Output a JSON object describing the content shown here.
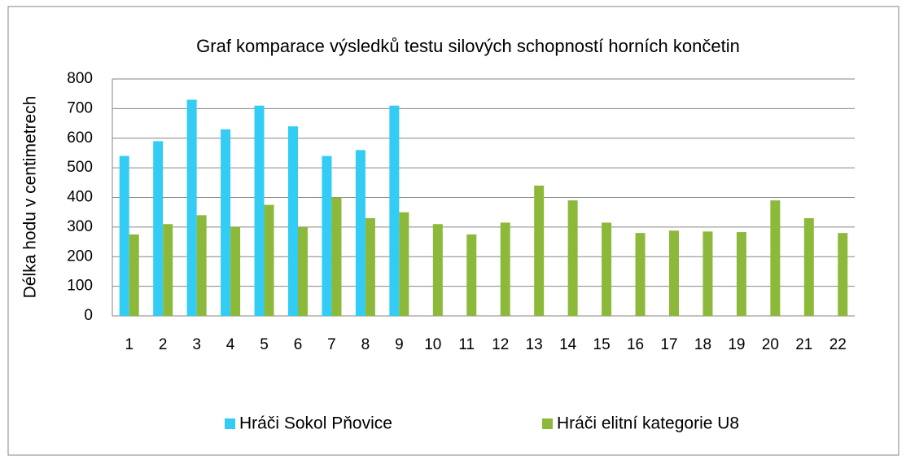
{
  "chart_data": {
    "type": "bar",
    "title": "Graf komparace výsledků  testu silových schopností horních končetin",
    "y_label": "Délka hodu v centimetrech",
    "categories": [
      "1",
      "2",
      "3",
      "4",
      "5",
      "6",
      "7",
      "8",
      "9",
      "10",
      "11",
      "12",
      "13",
      "14",
      "15",
      "16",
      "17",
      "18",
      "19",
      "20",
      "21",
      "22"
    ],
    "series": [
      {
        "name": "Hráči Sokol Pňovice",
        "color": "#33ccf5",
        "values": [
          540,
          590,
          730,
          630,
          710,
          640,
          540,
          560,
          710,
          null,
          null,
          null,
          null,
          null,
          null,
          null,
          null,
          null,
          null,
          null,
          null,
          null
        ]
      },
      {
        "name": "Hráči elitní kategorie U8",
        "color": "#8db93b",
        "values": [
          275,
          310,
          340,
          300,
          375,
          300,
          400,
          330,
          350,
          310,
          275,
          315,
          440,
          390,
          315,
          280,
          288,
          285,
          283,
          390,
          330,
          280
        ]
      }
    ],
    "ylim": [
      0,
      800
    ],
    "yticks": [
      0,
      100,
      200,
      300,
      400,
      500,
      600,
      700,
      800
    ],
    "grid": true,
    "legend": "bottom"
  }
}
